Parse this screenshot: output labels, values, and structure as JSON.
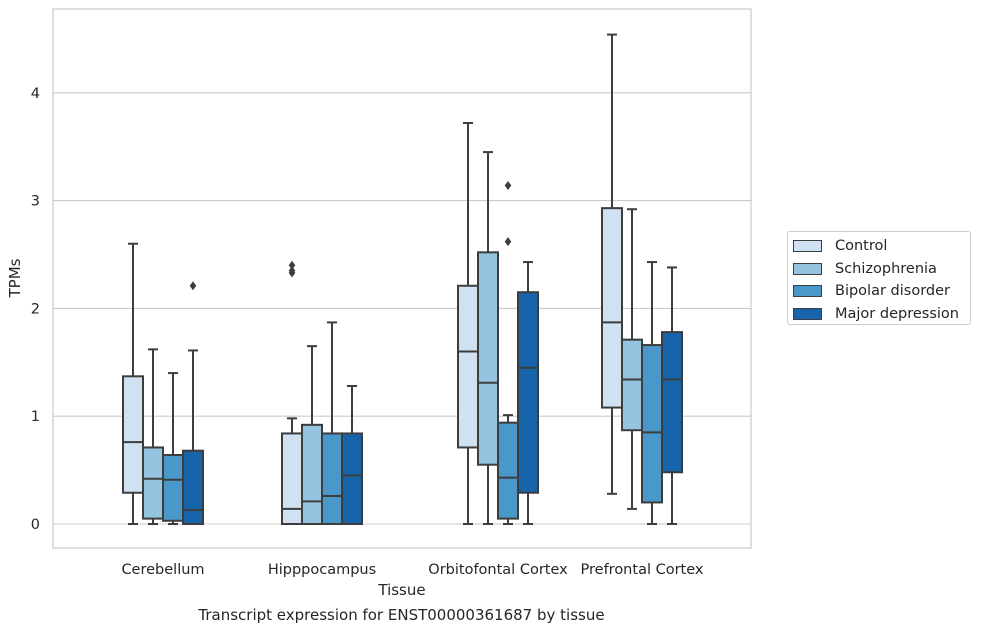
{
  "chart_data": {
    "type": "box",
    "xlabel": "Tissue",
    "ylabel": "TPMs",
    "caption": "Transcript expression for ENST00000361687 by tissue",
    "ylim": [
      -0.22,
      4.8
    ],
    "yticks": [
      0,
      1,
      2,
      3,
      4
    ],
    "grid": "horizontal",
    "legend_position": "right",
    "categories": [
      "Cerebellum",
      "Hipppocampus",
      "Orbitofontal Cortex",
      "Prefrontal Cortex"
    ],
    "series": [
      {
        "name": "Control",
        "color": "#d0e1f2",
        "boxes": [
          {
            "whislo": 0.0,
            "q1": 0.29,
            "med": 0.76,
            "q3": 1.37,
            "whishi": 2.6,
            "fliers": []
          },
          {
            "whislo": 0.0,
            "q1": 0.0,
            "med": 0.14,
            "q3": 0.84,
            "whishi": 0.98,
            "fliers": [
              2.33,
              2.35,
              2.4
            ]
          },
          {
            "whislo": 0.0,
            "q1": 0.71,
            "med": 1.6,
            "q3": 2.21,
            "whishi": 3.72,
            "fliers": []
          },
          {
            "whislo": 0.28,
            "q1": 1.08,
            "med": 1.87,
            "q3": 2.93,
            "whishi": 4.54,
            "fliers": []
          }
        ]
      },
      {
        "name": "Schizophrenia",
        "color": "#94c4df",
        "boxes": [
          {
            "whislo": 0.0,
            "q1": 0.05,
            "med": 0.42,
            "q3": 0.71,
            "whishi": 1.62,
            "fliers": []
          },
          {
            "whislo": 0.0,
            "q1": 0.0,
            "med": 0.21,
            "q3": 0.92,
            "whishi": 1.65,
            "fliers": []
          },
          {
            "whislo": 0.0,
            "q1": 0.55,
            "med": 1.31,
            "q3": 2.52,
            "whishi": 3.45,
            "fliers": []
          },
          {
            "whislo": 0.14,
            "q1": 0.87,
            "med": 1.34,
            "q3": 1.71,
            "whishi": 2.92,
            "fliers": []
          }
        ]
      },
      {
        "name": "Bipolar disorder",
        "color": "#4a98c9",
        "boxes": [
          {
            "whislo": 0.0,
            "q1": 0.03,
            "med": 0.41,
            "q3": 0.64,
            "whishi": 1.4,
            "fliers": []
          },
          {
            "whislo": 0.0,
            "q1": 0.0,
            "med": 0.26,
            "q3": 0.84,
            "whishi": 1.87,
            "fliers": []
          },
          {
            "whislo": 0.0,
            "q1": 0.05,
            "med": 0.43,
            "q3": 0.94,
            "whishi": 1.01,
            "fliers": [
              2.62,
              3.14
            ]
          },
          {
            "whislo": 0.0,
            "q1": 0.2,
            "med": 0.85,
            "q3": 1.66,
            "whishi": 2.43,
            "fliers": []
          }
        ]
      },
      {
        "name": "Major depression",
        "color": "#1764ab",
        "boxes": [
          {
            "whislo": 0.0,
            "q1": 0.0,
            "med": 0.13,
            "q3": 0.68,
            "whishi": 1.61,
            "fliers": [
              2.21
            ]
          },
          {
            "whislo": 0.0,
            "q1": 0.0,
            "med": 0.45,
            "q3": 0.84,
            "whishi": 1.28,
            "fliers": []
          },
          {
            "whislo": 0.0,
            "q1": 0.29,
            "med": 1.45,
            "q3": 2.15,
            "whishi": 2.43,
            "fliers": []
          },
          {
            "whislo": 0.0,
            "q1": 0.48,
            "med": 1.34,
            "q3": 1.78,
            "whishi": 2.38,
            "fliers": []
          }
        ]
      }
    ]
  }
}
